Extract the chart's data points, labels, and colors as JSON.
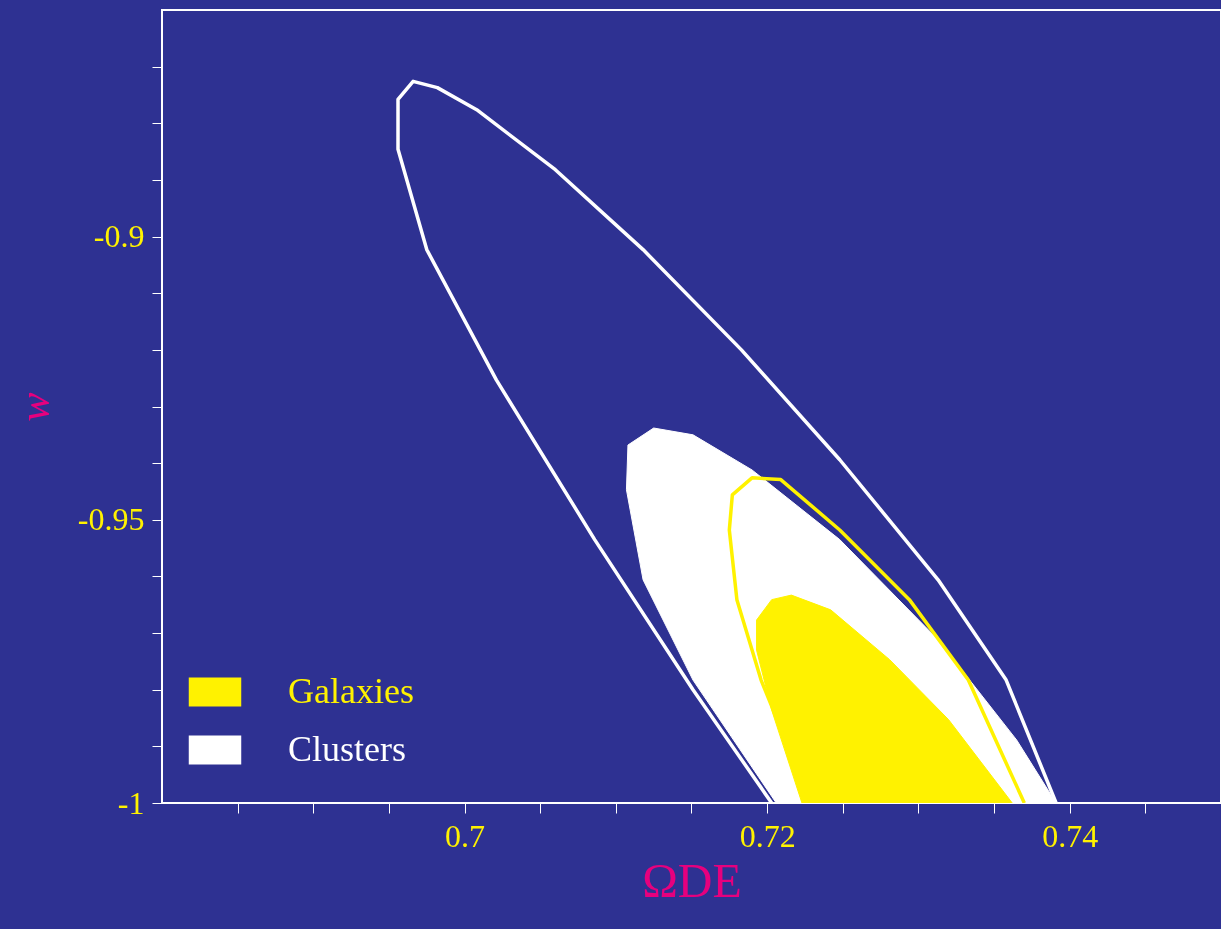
{
  "chart_data": {
    "type": "line",
    "xlabel": "ΩDE",
    "ylabel": "w",
    "xlim": [
      0.68,
      0.75
    ],
    "ylim": [
      -1,
      -0.86
    ],
    "xticks": [
      {
        "value": 0.685,
        "label": null
      },
      {
        "value": 0.69,
        "label": null
      },
      {
        "value": 0.695,
        "label": null
      },
      0.7,
      {
        "value": 0.705,
        "label": null
      },
      {
        "value": 0.71,
        "label": null
      },
      {
        "value": 0.715,
        "label": null
      },
      0.72,
      {
        "value": 0.725,
        "label": null
      },
      {
        "value": 0.73,
        "label": null
      },
      {
        "value": 0.735,
        "label": null
      },
      0.74,
      {
        "value": 0.745,
        "label": null
      }
    ],
    "yticks": [
      -1,
      {
        "value": -0.99,
        "label": null
      },
      {
        "value": -0.98,
        "label": null
      },
      {
        "value": -0.97,
        "label": null
      },
      {
        "value": -0.96,
        "label": null
      },
      -0.95,
      {
        "value": -0.94,
        "label": null
      },
      {
        "value": -0.93,
        "label": null
      },
      {
        "value": -0.92,
        "label": null
      },
      {
        "value": -0.91,
        "label": null
      },
      -0.9,
      {
        "value": -0.89,
        "label": null
      },
      {
        "value": -0.88,
        "label": null
      },
      {
        "value": -0.87,
        "label": null
      }
    ],
    "grid": false,
    "legend": "bottom left",
    "series": [
      {
        "name": "Clusters",
        "type": "area",
        "color": "#ffffff",
        "x": [
          0.7206,
          0.7151,
          0.7118,
          0.7107,
          0.7108,
          0.7125,
          0.7151,
          0.719,
          0.7248,
          0.7313,
          0.7365,
          0.7391
        ],
        "values": [
          -1.0,
          -0.9783,
          -0.9606,
          -0.9447,
          -0.9368,
          -0.9338,
          -0.935,
          -0.9412,
          -0.9535,
          -0.9712,
          -0.9889,
          -1.0
        ]
      },
      {
        "name": "Galaxies",
        "type": "area",
        "color": "#fff200",
        "x": [
          0.7223,
          0.7203,
          0.7193,
          0.7193,
          0.7203,
          0.7216,
          0.7242,
          0.7281,
          0.732,
          0.7362
        ],
        "values": [
          -1.0,
          -0.9836,
          -0.973,
          -0.9677,
          -0.9641,
          -0.9633,
          -0.9659,
          -0.9747,
          -0.9853,
          -1.0
        ]
      },
      {
        "type": "line",
        "color": "#fff200",
        "x": [
          0.7229,
          0.7196,
          0.718,
          0.7175,
          0.7177,
          0.719,
          0.7209,
          0.7248,
          0.7294,
          0.7333,
          0.737
        ],
        "values": [
          -1.0,
          -0.9783,
          -0.9641,
          -0.9518,
          -0.9456,
          -0.9426,
          -0.9429,
          -0.9518,
          -0.9641,
          -0.9783,
          -1.0
        ]
      },
      {
        "type": "line",
        "color": "#ffffff",
        "x": [
          0.7203,
          0.7151,
          0.7086,
          0.7021,
          0.6975,
          0.6956,
          0.6956,
          0.6966,
          0.6982,
          0.7008,
          0.706,
          0.7118,
          0.7183,
          0.7248,
          0.7313,
          0.7358,
          0.7391
        ],
        "values": [
          -1.0,
          -0.98,
          -0.9535,
          -0.9253,
          -0.9023,
          -0.8846,
          -0.8758,
          -0.8726,
          -0.8737,
          -0.8776,
          -0.8882,
          -0.9023,
          -0.92,
          -0.9394,
          -0.9606,
          -0.9783,
          -1.0
        ]
      }
    ]
  }
}
